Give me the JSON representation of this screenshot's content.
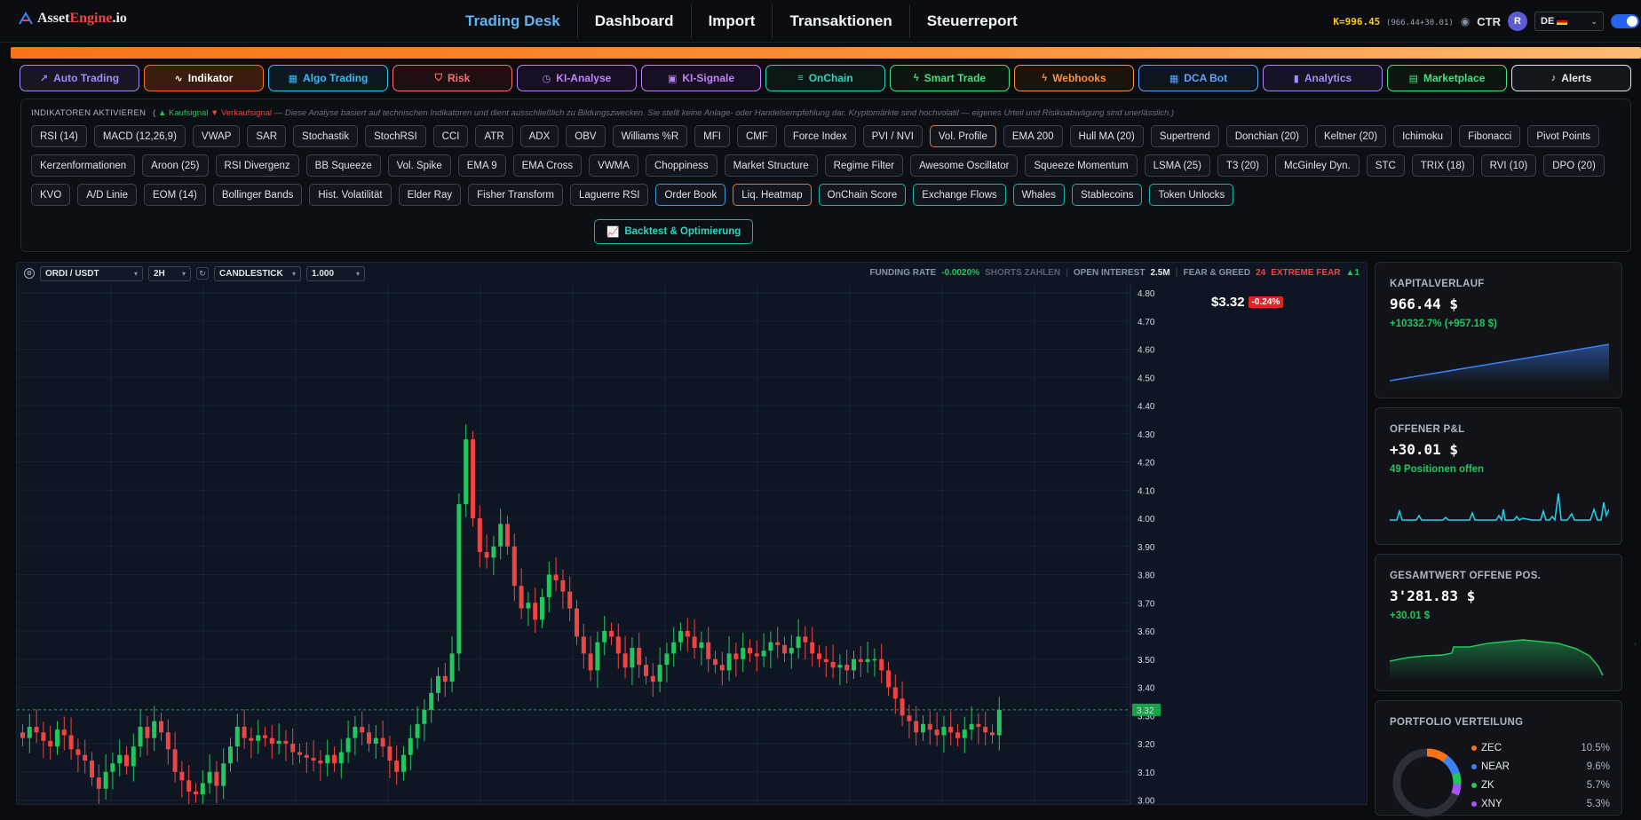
{
  "brand": {
    "name_pre": "Asset",
    "name_accent": "Engine",
    "name_post": ".io"
  },
  "nav": {
    "items": [
      "Trading Desk",
      "Dashboard",
      "Import",
      "Transaktionen",
      "Steuerreport"
    ],
    "active": 0
  },
  "header": {
    "kpi": "K=996.45",
    "kpi_detail": "(966.44+30.01)",
    "ctr": "CTR",
    "avatar": "R",
    "lang": "DE"
  },
  "modules": [
    {
      "label": "Auto Trading",
      "icon": "trend-icon",
      "color": "#a78bfa",
      "bg": "#1a1626"
    },
    {
      "label": "Indikator",
      "icon": "activity-icon",
      "color": "#f97316",
      "bg": "#3a1d0c",
      "active": true
    },
    {
      "label": "Algo Trading",
      "icon": "grid-icon",
      "color": "#38bdf8",
      "bg": "#0d1820"
    },
    {
      "label": "Risk",
      "icon": "shield-icon",
      "color": "#f87171",
      "bg": "#1f0f11"
    },
    {
      "label": "KI-Analyse",
      "icon": "clock-icon",
      "color": "#c084fc",
      "bg": "#170f22"
    },
    {
      "label": "KI-Signale",
      "icon": "bot-icon",
      "color": "#c084fc",
      "bg": "#170f22"
    },
    {
      "label": "OnChain",
      "icon": "sliders-icon",
      "color": "#2dd4bf",
      "bg": "#0b1816"
    },
    {
      "label": "Smart Trade",
      "icon": "bolt-icon",
      "color": "#4ade80",
      "bg": "#0c1710"
    },
    {
      "label": "Webhooks",
      "icon": "bolt-icon",
      "color": "#fb923c",
      "bg": "#1c130b"
    },
    {
      "label": "DCA Bot",
      "icon": "grid-icon",
      "color": "#60a5fa",
      "bg": "#0d1520"
    },
    {
      "label": "Analytics",
      "icon": "bars-icon",
      "color": "#a78bfa",
      "bg": "#151425"
    },
    {
      "label": "Marketplace",
      "icon": "store-icon",
      "color": "#4ade80",
      "bg": "#0c1710"
    },
    {
      "label": "Alerts",
      "icon": "bell-icon",
      "color": "#e5e7eb",
      "bg": "#14171c"
    }
  ],
  "indicators": {
    "title": "INDIKATOREN AKTIVIEREN",
    "buy_label": "▲ Kaufsignal",
    "sell_label": "▼ Verkaufsignal",
    "note": "— Diese Analyse basiert auf technischen Indikatoren und dient ausschließlich zu Bildungszwecken. Sie stellt keine Anlage- oder Handelsempfehlung dar. Kryptomärkte sind hochvolatil — eigenes Urteil und Risikoabwägung sind unerlässlich.)",
    "chips": [
      {
        "l": "RSI (14)"
      },
      {
        "l": "MACD (12,26,9)"
      },
      {
        "l": "VWAP"
      },
      {
        "l": "SAR"
      },
      {
        "l": "Stochastik"
      },
      {
        "l": "StochRSI"
      },
      {
        "l": "CCI"
      },
      {
        "l": "ATR"
      },
      {
        "l": "ADX"
      },
      {
        "l": "OBV"
      },
      {
        "l": "Williams %R"
      },
      {
        "l": "MFI"
      },
      {
        "l": "CMF"
      },
      {
        "l": "Force Index"
      },
      {
        "l": "PVI / NVI"
      },
      {
        "l": "Vol. Profile",
        "s": "orange"
      },
      {
        "l": "EMA 200"
      },
      {
        "l": "Hull MA (20)"
      },
      {
        "l": "Supertrend"
      },
      {
        "l": "Donchian (20)"
      },
      {
        "l": "Keltner (20)"
      },
      {
        "l": "Ichimoku"
      },
      {
        "l": "Fibonacci"
      },
      {
        "l": "Pivot Points"
      },
      {
        "l": "Kerzenformationen"
      },
      {
        "l": "Aroon (25)"
      },
      {
        "l": "RSI Divergenz"
      },
      {
        "l": "BB Squeeze"
      },
      {
        "l": "Vol. Spike"
      },
      {
        "l": "EMA 9"
      },
      {
        "l": "EMA Cross"
      },
      {
        "l": "VWMA"
      },
      {
        "l": "Choppiness"
      },
      {
        "l": "Market Structure"
      },
      {
        "l": "Regime Filter"
      },
      {
        "l": "Awesome Oscillator"
      },
      {
        "l": "Squeeze Momentum"
      },
      {
        "l": "LSMA (25)"
      },
      {
        "l": "T3 (20)"
      },
      {
        "l": "McGinley Dyn."
      },
      {
        "l": "STC"
      },
      {
        "l": "TRIX (18)"
      },
      {
        "l": "RVI (10)"
      },
      {
        "l": "DPO (20)"
      },
      {
        "l": "KVO"
      },
      {
        "l": "A/D Linie"
      },
      {
        "l": "EOM (14)"
      },
      {
        "l": "Bollinger Bands"
      },
      {
        "l": "Hist. Volatilität"
      },
      {
        "l": "Elder Ray"
      },
      {
        "l": "Fisher Transform"
      },
      {
        "l": "Laguerre RSI"
      },
      {
        "l": "Order Book",
        "s": "blue"
      },
      {
        "l": "Liq. Heatmap",
        "s": "orange"
      },
      {
        "l": "OnChain Score",
        "s": "teal"
      },
      {
        "l": "Exchange Flows",
        "s": "teal"
      },
      {
        "l": "Whales",
        "s": "teal"
      },
      {
        "l": "Stablecoins",
        "s": "teal"
      },
      {
        "l": "Token Unlocks",
        "s": "teal"
      }
    ],
    "backtest_label": "Backtest & Optimierung"
  },
  "chart_toolbar": {
    "pair": "ORDI / USDT",
    "interval": "2H",
    "type": "CANDLESTICK",
    "size": "1.000",
    "funding_label": "FUNDING RATE",
    "funding_value": "-0.0020%",
    "funding_note": "SHORTS ZAHLEN",
    "oi_label": "OPEN INTEREST",
    "oi_value": "2.5M",
    "fg_label": "FEAR & GREED",
    "fg_value": "24",
    "fg_text": "EXTREME FEAR",
    "fg_delta": "▲1"
  },
  "price": {
    "last": "$3.32",
    "change": "-0.24%",
    "marker": "3.32"
  },
  "chart_data": {
    "type": "candlestick",
    "pair": "ORDI / USDT",
    "interval": "2H",
    "y_ticks": [
      4.8,
      4.7,
      4.6,
      4.5,
      4.4,
      4.3,
      4.2,
      4.1,
      4.0,
      3.9,
      3.8,
      3.7,
      3.6,
      3.5,
      3.4,
      3.3,
      3.2,
      3.1,
      3.0
    ],
    "ylim": [
      3.0,
      4.8
    ],
    "last_price": 3.32,
    "closes": [
      3.22,
      3.26,
      3.24,
      3.21,
      3.19,
      3.25,
      3.23,
      3.18,
      3.16,
      3.14,
      3.08,
      3.04,
      3.1,
      3.13,
      3.16,
      3.12,
      3.19,
      3.26,
      3.22,
      3.28,
      3.24,
      3.18,
      3.1,
      3.07,
      3.03,
      3.02,
      3.06,
      3.1,
      3.05,
      3.13,
      3.19,
      3.26,
      3.22,
      3.21,
      3.23,
      3.22,
      3.2,
      3.21,
      3.2,
      3.17,
      3.16,
      3.15,
      3.14,
      3.13,
      3.16,
      3.13,
      3.17,
      3.22,
      3.26,
      3.24,
      3.2,
      3.22,
      3.19,
      3.14,
      3.1,
      3.16,
      3.22,
      3.27,
      3.32,
      3.38,
      3.44,
      3.42,
      3.52,
      4.05,
      4.28,
      4.0,
      3.88,
      3.86,
      3.9,
      3.98,
      3.9,
      3.76,
      3.68,
      3.7,
      3.64,
      3.72,
      3.8,
      3.78,
      3.74,
      3.68,
      3.58,
      3.52,
      3.46,
      3.56,
      3.6,
      3.58,
      3.52,
      3.47,
      3.54,
      3.48,
      3.44,
      3.42,
      3.48,
      3.52,
      3.56,
      3.6,
      3.58,
      3.54,
      3.56,
      3.5,
      3.48,
      3.46,
      3.52,
      3.5,
      3.54,
      3.52,
      3.51,
      3.53,
      3.56,
      3.55,
      3.52,
      3.54,
      3.58,
      3.56,
      3.52,
      3.5,
      3.49,
      3.47,
      3.48,
      3.46,
      3.5,
      3.49,
      3.5,
      3.5,
      3.46,
      3.4,
      3.36,
      3.3,
      3.28,
      3.24,
      3.27,
      3.25,
      3.23,
      3.26,
      3.24,
      3.22,
      3.25,
      3.27,
      3.26,
      3.24,
      3.23,
      3.32
    ]
  },
  "panels": {
    "kapital": {
      "label": "KAPITALVERLAUF",
      "value": "966.44 $",
      "sub": "+10332.7% (+957.18 $)"
    },
    "pnl": {
      "label": "OFFENER P&L",
      "value": "+30.01 $",
      "sub": "49 Positionen offen"
    },
    "gesamt": {
      "label": "GESAMTWERT OFFENE POS.",
      "value": "3'281.83 $",
      "sub": "+30.01 $"
    },
    "portfolio": {
      "label": "PORTFOLIO VERTEILUNG",
      "items": [
        {
          "name": "ZEC",
          "pct": "10.5%",
          "color": "#f97316"
        },
        {
          "name": "NEAR",
          "pct": "9.6%",
          "color": "#3b82f6"
        },
        {
          "name": "ZK",
          "pct": "5.7%",
          "color": "#22c55e"
        },
        {
          "name": "XNY",
          "pct": "5.3%",
          "color": "#a855f7"
        }
      ]
    }
  },
  "colors": {
    "up": "#22c55e",
    "down": "#ef4444",
    "accent": "#60b4f0",
    "orange": "#f97316"
  }
}
